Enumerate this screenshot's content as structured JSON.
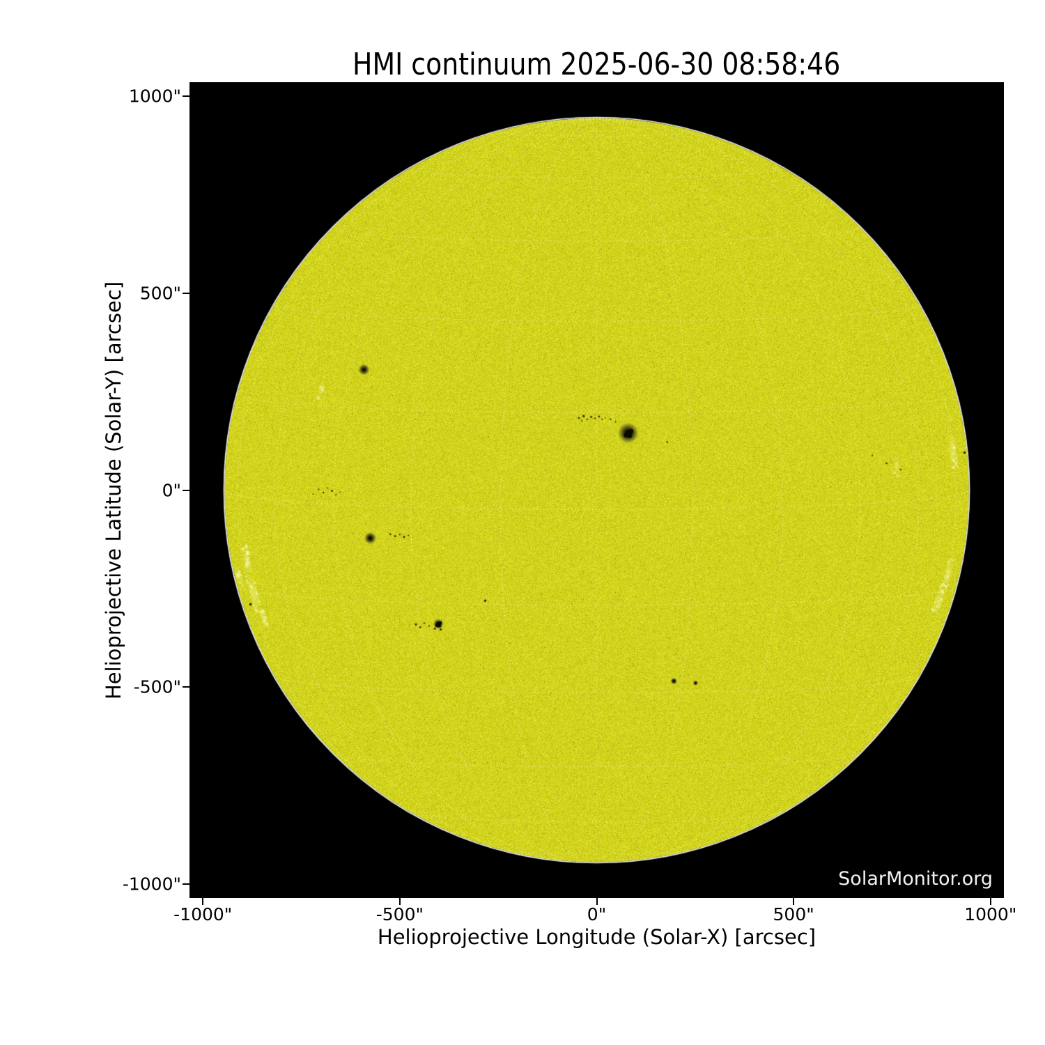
{
  "title": "HMI continuum 2025-06-30 08:58:46",
  "watermark": "SolarMonitor.org",
  "chart_data": {
    "type": "heatmap",
    "description": "Full-disk solar continuum image (SDO/HMI) shown as a yellow disk on black with a dotted 15-degree heliographic grid, sunspots and limb faculae",
    "title": "HMI continuum 2025-06-30 08:58:46",
    "xlabel": "Helioprojective Longitude (Solar-X) [arcsec]",
    "ylabel": "Helioprojective Latitude (Solar-Y) [arcsec]",
    "xlim": [
      -1034,
      1034
    ],
    "ylim": [
      -1036,
      1036
    ],
    "xtick_values": [
      -1000,
      -500,
      0,
      500,
      1000
    ],
    "xtick_labels": [
      "-1000\"",
      "-500\"",
      "0\"",
      "500\"",
      "1000\""
    ],
    "ytick_values": [
      1000,
      500,
      0,
      -500,
      -1000
    ],
    "ytick_labels": [
      "1000\"",
      "500\"",
      "0\"",
      "-500\"",
      "-1000\""
    ],
    "grid": {
      "spacing_deg": 15,
      "b0_deg": 3.0,
      "color": "rgba(255,255,248,0.55)"
    },
    "sun": {
      "radius_arcsec": 945,
      "disk_color": "#d2d31f",
      "limb_color": "rgba(249,249,245,0.95)",
      "background_color": "#000000",
      "noise_amp": 19
    },
    "sunspots": [
      {
        "x": -591,
        "y": 306,
        "umbra": 7,
        "penumbra": 15
      },
      {
        "x": 80,
        "y": 145,
        "umbra": 16,
        "penumbra": 28,
        "irregular": true
      },
      {
        "x": -575,
        "y": -122,
        "umbra": 8,
        "penumbra": 16
      },
      {
        "x": -402,
        "y": -340,
        "umbra": 11,
        "penumbra": 14,
        "irregular": true
      },
      {
        "x": 196,
        "y": -485,
        "umbra": 6,
        "penumbra": 9
      },
      {
        "x": 251,
        "y": -490,
        "umbra": 4.5,
        "penumbra": 7
      }
    ],
    "pores": [
      {
        "x": -45,
        "y": 183,
        "r": 2.5
      },
      {
        "x": -33,
        "y": 188,
        "r": 3
      },
      {
        "x": -24,
        "y": 180,
        "r": 2
      },
      {
        "x": -14,
        "y": 186,
        "r": 2.5
      },
      {
        "x": -4,
        "y": 182,
        "r": 2
      },
      {
        "x": 6,
        "y": 187,
        "r": 2.5
      },
      {
        "x": -38,
        "y": 176,
        "r": 1.8
      },
      {
        "x": 14,
        "y": 180,
        "r": 1.8
      },
      {
        "x": 22,
        "y": 184,
        "r": 1.5
      },
      {
        "x": 35,
        "y": 180,
        "r": 2
      },
      {
        "x": 48,
        "y": 174,
        "r": 1.8
      },
      {
        "x": 179,
        "y": 122,
        "r": 2.2
      },
      {
        "x": -524,
        "y": -112,
        "r": 2.2
      },
      {
        "x": -512,
        "y": -117,
        "r": 2.5
      },
      {
        "x": -500,
        "y": -113,
        "r": 2
      },
      {
        "x": -489,
        "y": -119,
        "r": 2.5
      },
      {
        "x": -478,
        "y": -115,
        "r": 1.6
      },
      {
        "x": -459,
        "y": -341,
        "r": 2.6
      },
      {
        "x": -448,
        "y": -348,
        "r": 2.2
      },
      {
        "x": -438,
        "y": -338,
        "r": 2
      },
      {
        "x": -425,
        "y": -345,
        "r": 1.8
      },
      {
        "x": -411,
        "y": -352,
        "r": 2.4
      },
      {
        "x": -396,
        "y": -354,
        "r": 2.8
      },
      {
        "x": -283,
        "y": -281,
        "r": 3.2
      },
      {
        "x": -720,
        "y": -10,
        "r": 1.6
      },
      {
        "x": -706,
        "y": 2,
        "r": 1.8
      },
      {
        "x": -694,
        "y": -6,
        "r": 2.2
      },
      {
        "x": -683,
        "y": 5,
        "r": 1.6
      },
      {
        "x": -672,
        "y": -2,
        "r": 2.4
      },
      {
        "x": -662,
        "y": -12,
        "r": 1.7
      },
      {
        "x": -652,
        "y": -5,
        "r": 1.5
      },
      {
        "x": 934,
        "y": 95,
        "r": 3
      },
      {
        "x": 772,
        "y": 52,
        "r": 2
      },
      {
        "x": 736,
        "y": 68,
        "r": 2.2
      },
      {
        "x": 700,
        "y": 88,
        "r": 1.8
      },
      {
        "x": -879,
        "y": -290,
        "r": 3.2
      }
    ],
    "faculae": [
      {
        "x": 905,
        "y": 100,
        "len": 100,
        "wid": 16,
        "alpha": 0.8
      },
      {
        "x": 893,
        "y": -210,
        "len": 85,
        "wid": 16,
        "alpha": 0.7
      },
      {
        "x": 868,
        "y": -278,
        "len": 75,
        "wid": 18,
        "alpha": 0.7
      },
      {
        "x": 760,
        "y": 62,
        "len": 55,
        "wid": 12,
        "alpha": 0.45
      },
      {
        "x": -887,
        "y": -180,
        "len": 85,
        "wid": 15,
        "alpha": 0.75
      },
      {
        "x": -905,
        "y": -225,
        "len": 40,
        "wid": 12,
        "alpha": 0.6
      },
      {
        "x": -870,
        "y": -262,
        "len": 95,
        "wid": 20,
        "alpha": 0.8
      },
      {
        "x": -843,
        "y": -330,
        "len": 65,
        "wid": 14,
        "alpha": 0.6
      },
      {
        "x": -700,
        "y": 250,
        "len": 45,
        "wid": 11,
        "alpha": 0.45
      }
    ]
  }
}
